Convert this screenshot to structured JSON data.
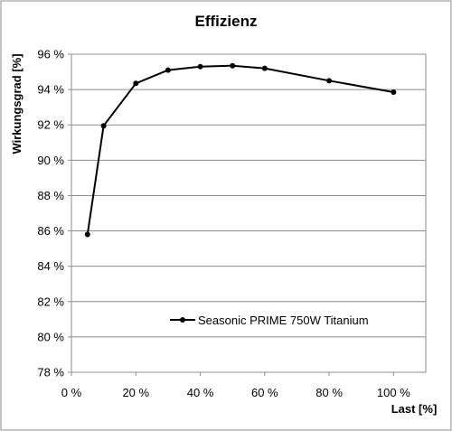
{
  "chart_data": {
    "type": "line",
    "title": "Effizienz",
    "xlabel": "Last [%]",
    "ylabel": "Wirkungsgrad [%]",
    "xlim": [
      0,
      110
    ],
    "ylim": [
      78,
      96
    ],
    "x_ticks": [
      0,
      20,
      40,
      60,
      80,
      100
    ],
    "x_tick_labels": [
      "0 %",
      "20 %",
      "40 %",
      "60 %",
      "80 %",
      "100 %"
    ],
    "y_ticks": [
      78,
      80,
      82,
      84,
      86,
      88,
      90,
      92,
      94,
      96
    ],
    "y_tick_labels": [
      "78 %",
      "80 %",
      "82 %",
      "84 %",
      "86 %",
      "88 %",
      "90 %",
      "92 %",
      "94 %",
      "96 %"
    ],
    "grid": "horizontal",
    "legend_position": "bottom-right",
    "series": [
      {
        "name": "Seasonic PRIME 750W Titanium",
        "color": "#000000",
        "x": [
          5,
          10,
          20,
          30,
          40,
          50,
          60,
          80,
          100
        ],
        "y": [
          85.8,
          91.95,
          94.35,
          95.1,
          95.3,
          95.35,
          95.2,
          94.5,
          93.85
        ]
      }
    ]
  }
}
